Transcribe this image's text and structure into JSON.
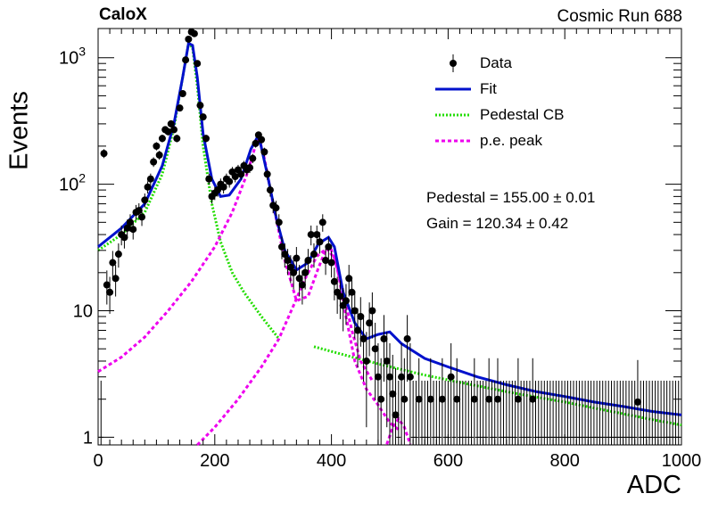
{
  "header": {
    "collaboration": "CaloX",
    "run_label": "Cosmic Run 688"
  },
  "fit_results": {
    "pedestal": "Pedestal = 155.00 ± 0.01",
    "gain": "Gain = 120.34 ± 0.42"
  },
  "colors": {
    "data": "#000000",
    "fit": "#0011cc",
    "pedestal": "#22dd00",
    "pe_peak": "#ee00ee"
  },
  "chart_data": {
    "type": "scatter",
    "xlabel": "ADC",
    "ylabel": "Events",
    "xlim": [
      0,
      1000
    ],
    "ylim": [
      0.87,
      1700
    ],
    "yscale": "log",
    "xticks": [
      0,
      200,
      400,
      600,
      800,
      1000
    ],
    "yticks": [
      {
        "value": 1,
        "label": "1"
      },
      {
        "value": 10,
        "label": "10"
      },
      {
        "value": 100,
        "label": "10^2"
      },
      {
        "value": 1000,
        "label": "10^3"
      }
    ],
    "legend": {
      "placement": "top-right",
      "entries": [
        {
          "label": "Data",
          "style": "marker"
        },
        {
          "label": "Fit",
          "style": "solid"
        },
        {
          "label": "Pedestal CB",
          "style": "dotted"
        },
        {
          "label": "p.e. peak",
          "style": "dashed"
        }
      ]
    },
    "series": [
      {
        "name": "Data",
        "points": [
          [
            5,
            1
          ],
          [
            10,
            175
          ],
          [
            15,
            16
          ],
          [
            20,
            14
          ],
          [
            25,
            24
          ],
          [
            30,
            18
          ],
          [
            35,
            28
          ],
          [
            40,
            40
          ],
          [
            45,
            38
          ],
          [
            50,
            45
          ],
          [
            55,
            50
          ],
          [
            60,
            44
          ],
          [
            65,
            60
          ],
          [
            70,
            62
          ],
          [
            75,
            55
          ],
          [
            80,
            75
          ],
          [
            85,
            95
          ],
          [
            90,
            110
          ],
          [
            95,
            150
          ],
          [
            100,
            200
          ],
          [
            105,
            170
          ],
          [
            110,
            230
          ],
          [
            115,
            270
          ],
          [
            120,
            260
          ],
          [
            125,
            300
          ],
          [
            130,
            270
          ],
          [
            135,
            230
          ],
          [
            140,
            400
          ],
          [
            145,
            520
          ],
          [
            150,
            960
          ],
          [
            155,
            1400
          ],
          [
            160,
            1600
          ],
          [
            165,
            1550
          ],
          [
            170,
            900
          ],
          [
            175,
            420
          ],
          [
            180,
            340
          ],
          [
            185,
            230
          ],
          [
            190,
            110
          ],
          [
            195,
            80
          ],
          [
            200,
            85
          ],
          [
            205,
            90
          ],
          [
            210,
            100
          ],
          [
            215,
            95
          ],
          [
            220,
            110
          ],
          [
            225,
            105
          ],
          [
            230,
            125
          ],
          [
            235,
            115
          ],
          [
            240,
            130
          ],
          [
            245,
            120
          ],
          [
            250,
            140
          ],
          [
            255,
            130
          ],
          [
            260,
            135
          ],
          [
            265,
            160
          ],
          [
            270,
            210
          ],
          [
            275,
            245
          ],
          [
            280,
            225
          ],
          [
            285,
            180
          ],
          [
            290,
            120
          ],
          [
            295,
            90
          ],
          [
            300,
            68
          ],
          [
            305,
            65
          ],
          [
            310,
            50
          ],
          [
            315,
            32
          ],
          [
            320,
            28
          ],
          [
            325,
            25
          ],
          [
            330,
            22
          ],
          [
            335,
            20
          ],
          [
            340,
            26
          ],
          [
            345,
            18
          ],
          [
            350,
            16
          ],
          [
            355,
            20
          ],
          [
            360,
            25
          ],
          [
            365,
            40
          ],
          [
            370,
            28
          ],
          [
            375,
            40
          ],
          [
            380,
            35
          ],
          [
            385,
            50
          ],
          [
            390,
            25
          ],
          [
            395,
            32
          ],
          [
            400,
            24
          ],
          [
            405,
            17
          ],
          [
            410,
            14
          ],
          [
            415,
            13
          ],
          [
            420,
            11
          ],
          [
            425,
            12
          ],
          [
            430,
            18
          ],
          [
            435,
            14
          ],
          [
            440,
            10
          ],
          [
            445,
            7
          ],
          [
            450,
            9
          ],
          [
            455,
            6
          ],
          [
            460,
            4
          ],
          [
            465,
            8
          ],
          [
            470,
            10
          ],
          [
            475,
            5
          ],
          [
            480,
            3
          ],
          [
            485,
            2
          ],
          [
            490,
            6
          ],
          [
            495,
            4
          ],
          [
            500,
            3
          ],
          [
            505,
            2.2
          ],
          [
            510,
            1.5
          ],
          [
            515,
            1
          ],
          [
            520,
            3
          ],
          [
            525,
            2
          ],
          [
            530,
            6
          ],
          [
            535,
            3
          ],
          [
            540,
            1
          ],
          [
            545,
            1
          ],
          [
            550,
            2
          ],
          [
            555,
            1
          ],
          [
            560,
            1
          ],
          [
            565,
            1
          ],
          [
            570,
            2
          ],
          [
            575,
            1
          ],
          [
            580,
            1
          ],
          [
            585,
            1
          ],
          [
            590,
            2
          ],
          [
            595,
            1
          ],
          [
            600,
            1
          ],
          [
            605,
            3
          ],
          [
            610,
            1
          ],
          [
            615,
            2
          ],
          [
            620,
            1
          ],
          [
            625,
            1
          ],
          [
            630,
            1
          ],
          [
            635,
            1
          ],
          [
            640,
            1
          ],
          [
            645,
            2
          ],
          [
            650,
            1
          ],
          [
            655,
            1
          ],
          [
            660,
            1
          ],
          [
            665,
            1
          ],
          [
            670,
            2
          ],
          [
            675,
            1
          ],
          [
            680,
            1
          ],
          [
            685,
            2
          ],
          [
            690,
            1
          ],
          [
            695,
            1
          ],
          [
            700,
            1
          ],
          [
            705,
            1
          ],
          [
            710,
            1
          ],
          [
            715,
            1
          ],
          [
            720,
            2
          ],
          [
            725,
            1
          ],
          [
            730,
            1
          ],
          [
            735,
            1
          ],
          [
            740,
            1
          ],
          [
            745,
            2
          ],
          [
            750,
            1
          ],
          [
            755,
            1
          ],
          [
            760,
            1
          ],
          [
            765,
            1
          ],
          [
            770,
            1
          ],
          [
            775,
            1
          ],
          [
            780,
            1
          ],
          [
            785,
            1
          ],
          [
            790,
            1
          ],
          [
            795,
            1
          ],
          [
            800,
            1
          ],
          [
            805,
            1
          ],
          [
            810,
            1
          ],
          [
            815,
            1
          ],
          [
            820,
            1
          ],
          [
            825,
            1
          ],
          [
            830,
            1
          ],
          [
            835,
            1
          ],
          [
            840,
            1
          ],
          [
            845,
            1
          ],
          [
            850,
            1
          ],
          [
            855,
            1
          ],
          [
            860,
            1
          ],
          [
            865,
            1
          ],
          [
            870,
            1
          ],
          [
            875,
            1
          ],
          [
            880,
            1
          ],
          [
            885,
            1
          ],
          [
            890,
            1
          ],
          [
            895,
            1
          ],
          [
            900,
            1
          ],
          [
            905,
            1
          ],
          [
            910,
            1
          ],
          [
            915,
            1
          ],
          [
            920,
            1
          ],
          [
            925,
            1.9
          ],
          [
            930,
            1
          ],
          [
            935,
            1
          ],
          [
            940,
            1
          ],
          [
            945,
            1
          ],
          [
            950,
            1
          ],
          [
            955,
            1
          ],
          [
            960,
            1
          ],
          [
            965,
            1
          ],
          [
            970,
            1
          ],
          [
            975,
            1
          ],
          [
            980,
            1
          ],
          [
            985,
            1
          ],
          [
            990,
            1
          ],
          [
            995,
            1
          ]
        ]
      },
      {
        "name": "Fit",
        "points": [
          [
            0,
            32
          ],
          [
            40,
            45
          ],
          [
            80,
            70
          ],
          [
            110,
            140
          ],
          [
            130,
            300
          ],
          [
            145,
            700
          ],
          [
            155,
            1300
          ],
          [
            162,
            1250
          ],
          [
            170,
            700
          ],
          [
            180,
            250
          ],
          [
            195,
            110
          ],
          [
            210,
            80
          ],
          [
            225,
            82
          ],
          [
            245,
            110
          ],
          [
            262,
            190
          ],
          [
            275,
            245
          ],
          [
            290,
            120
          ],
          [
            305,
            55
          ],
          [
            320,
            30
          ],
          [
            340,
            21
          ],
          [
            360,
            24
          ],
          [
            378,
            34
          ],
          [
            395,
            38
          ],
          [
            405,
            32
          ],
          [
            420,
            14
          ],
          [
            440,
            8
          ],
          [
            460,
            6
          ],
          [
            480,
            6.5
          ],
          [
            500,
            6.8
          ],
          [
            520,
            5.5
          ],
          [
            560,
            4.2
          ],
          [
            600,
            3.6
          ],
          [
            650,
            3.0
          ],
          [
            700,
            2.6
          ],
          [
            750,
            2.3
          ],
          [
            800,
            2.1
          ],
          [
            850,
            1.9
          ],
          [
            900,
            1.75
          ],
          [
            950,
            1.6
          ],
          [
            1000,
            1.5
          ]
        ]
      },
      {
        "name": "Pedestal CB",
        "points": [
          [
            0,
            30
          ],
          [
            40,
            40
          ],
          [
            80,
            60
          ],
          [
            110,
            120
          ],
          [
            130,
            280
          ],
          [
            145,
            700
          ],
          [
            155,
            1300
          ],
          [
            162,
            1200
          ],
          [
            170,
            600
          ],
          [
            180,
            200
          ],
          [
            195,
            70
          ],
          [
            210,
            35
          ],
          [
            230,
            20
          ],
          [
            250,
            14
          ],
          [
            280,
            9
          ],
          [
            310,
            6
          ]
        ]
      },
      {
        "name": "Pedestal CB tail",
        "points": [
          [
            370,
            5.2
          ],
          [
            420,
            4.5
          ],
          [
            480,
            3.8
          ],
          [
            560,
            3.1
          ],
          [
            640,
            2.6
          ],
          [
            720,
            2.2
          ],
          [
            800,
            1.9
          ],
          [
            880,
            1.6
          ],
          [
            960,
            1.35
          ],
          [
            1000,
            1.25
          ]
        ]
      },
      {
        "name": "p.e. peak",
        "points": [
          [
            0,
            3.3
          ],
          [
            40,
            4.3
          ],
          [
            80,
            6.2
          ],
          [
            120,
            10
          ],
          [
            160,
            17
          ],
          [
            200,
            32
          ],
          [
            230,
            60
          ],
          [
            255,
            120
          ],
          [
            268,
            190
          ],
          [
            275,
            240
          ],
          [
            285,
            160
          ],
          [
            300,
            70
          ],
          [
            320,
            25
          ],
          [
            340,
            12
          ],
          [
            360,
            13
          ],
          [
            378,
            22
          ],
          [
            390,
            30
          ],
          [
            398,
            32
          ],
          [
            410,
            22
          ],
          [
            425,
            9
          ],
          [
            440,
            4
          ],
          [
            460,
            2.4
          ],
          [
            480,
            1.8
          ],
          [
            500,
            1.3
          ],
          [
            515,
            1.15
          ]
        ]
      },
      {
        "name": "p.e. peak 1",
        "points": [
          [
            170,
            0.87
          ],
          [
            200,
            1.2
          ],
          [
            240,
            2.0
          ],
          [
            280,
            3.6
          ],
          [
            310,
            6
          ],
          [
            335,
            11
          ],
          [
            355,
            18
          ],
          [
            375,
            27
          ],
          [
            392,
            31
          ],
          [
            405,
            26
          ],
          [
            420,
            14
          ],
          [
            435,
            7
          ],
          [
            450,
            4
          ],
          [
            470,
            2.8
          ]
        ]
      },
      {
        "name": "p.e. peak 2",
        "points": [
          [
            495,
            0.88
          ],
          [
            505,
            1.2
          ],
          [
            515,
            1.4
          ],
          [
            525,
            1.2
          ],
          [
            535,
            0.88
          ]
        ]
      }
    ]
  }
}
